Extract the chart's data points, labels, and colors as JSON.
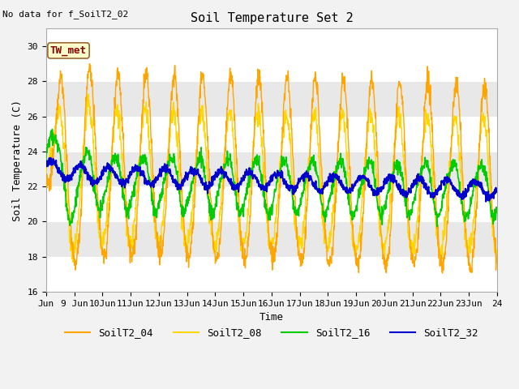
{
  "title": "Soil Temperature Set 2",
  "xlabel": "Time",
  "ylabel": "Soil Temperature (C)",
  "no_data_label": "No data for f_SoilT2_02",
  "tw_met_label": "TW_met",
  "ylim": [
    16,
    31
  ],
  "yticks": [
    16,
    18,
    20,
    22,
    24,
    26,
    28,
    30
  ],
  "x_start_days": 8.0,
  "x_end_days": 24.0,
  "x_tick_days": [
    8,
    9,
    10,
    11,
    12,
    13,
    14,
    15,
    16,
    17,
    18,
    19,
    20,
    21,
    22,
    23,
    24
  ],
  "x_tick_labels": [
    "Jun",
    "9 Jun",
    "10Jun",
    "11Jun",
    "12Jun",
    "13Jun",
    "14Jun",
    "15Jun",
    "16Jun",
    "17Jun",
    "18Jun",
    "19Jun",
    "20Jun",
    "21Jun",
    "22Jun",
    "23Jun",
    "24"
  ],
  "colors": {
    "SoilT2_04": "#FFA500",
    "SoilT2_08": "#FFD700",
    "SoilT2_16": "#00CC00",
    "SoilT2_32": "#0000CC"
  },
  "legend_entries": [
    "SoilT2_04",
    "SoilT2_08",
    "SoilT2_16",
    "SoilT2_32"
  ],
  "bg_light": "#F0F0F0",
  "bg_dark": "#E0E0E0",
  "axes_facecolor": "#DCDCDC",
  "tw_met_box_color": "#FFFFCC",
  "tw_met_text_color": "#8B0000",
  "tw_met_edge_color": "#996633"
}
